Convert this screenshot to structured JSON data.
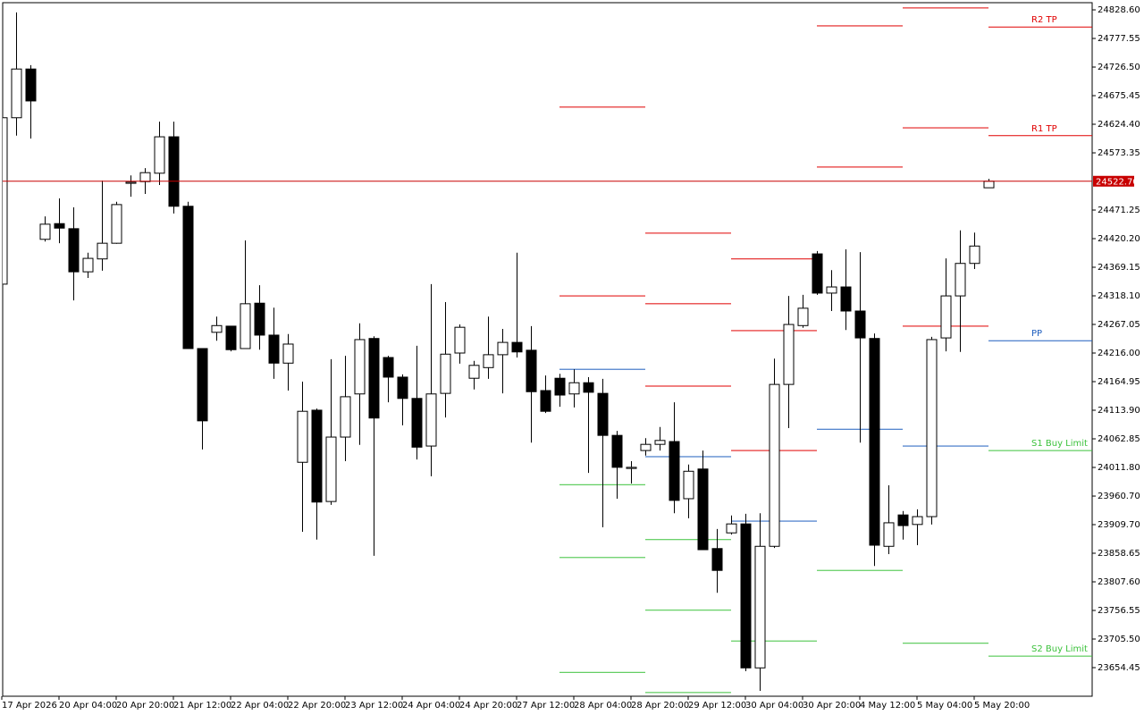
{
  "chart_data": {
    "type": "candlestick",
    "categories": [
      "17 Apr 2026",
      null,
      null,
      null,
      "20 Apr 04:00",
      null,
      null,
      null,
      "20 Apr 20:00",
      null,
      null,
      null,
      "21 Apr 12:00",
      null,
      null,
      null,
      "22 Apr 04:00",
      null,
      null,
      null,
      "22 Apr 20:00",
      null,
      null,
      null,
      "23 Apr 12:00",
      null,
      null,
      null,
      "24 Apr 04:00",
      null,
      null,
      null,
      "24 Apr 20:00",
      null,
      null,
      null,
      "27 Apr 12:00",
      null,
      null,
      null,
      "28 Apr 04:00",
      null,
      null,
      null,
      "28 Apr 20:00",
      null,
      null,
      null,
      "29 Apr 12:00",
      null,
      null,
      null,
      "30 Apr 04:00",
      null,
      null,
      null,
      "30 Apr 20:00",
      null,
      null,
      null,
      "4 May 12:00",
      null,
      null,
      null,
      "5 May 04:00",
      null,
      null,
      null,
      "5 May 20:00",
      null
    ],
    "open": [
      24339,
      24636,
      24723,
      24419,
      24447,
      24438,
      24361,
      24384,
      24412,
      24519,
      24522,
      24537,
      24602,
      24478,
      24224,
      24253,
      24264,
      24224,
      24305,
      24248,
      24198,
      24021,
      24114,
      23951,
      24066,
      24143,
      24242,
      24208,
      24173,
      24135,
      24050,
      24144,
      24216,
      24171,
      24190,
      24213,
      24235,
      24221,
      24149,
      24171,
      24143,
      24163,
      24144,
      24069,
      24010,
      24042,
      24053,
      24058,
      23956,
      24009,
      23867,
      23895,
      23911,
      23654,
      23871,
      24160,
      24265,
      24393,
      24323,
      24334,
      24291,
      24242,
      23871,
      23927,
      23910,
      23924,
      24243,
      24318,
      24376,
      24511
    ],
    "high": [
      24639,
      24824,
      24730,
      24460,
      24492,
      24476,
      24395,
      24524,
      24486,
      24533,
      24546,
      24629,
      24629,
      24486,
      24224,
      24281,
      24264,
      24417,
      24337,
      24297,
      24250,
      24165,
      24117,
      24205,
      24211,
      24269,
      24246,
      24211,
      24178,
      24229,
      24339,
      24307,
      24267,
      24202,
      24281,
      24259,
      24395,
      24264,
      24176,
      24179,
      24187,
      24173,
      24170,
      24077,
      24023,
      24064,
      24084,
      24128,
      24017,
      24042,
      23902,
      23926,
      23929,
      23930,
      24206,
      24318,
      24320,
      24398,
      24364,
      24401,
      24396,
      24251,
      23980,
      23934,
      23937,
      24245,
      24385,
      24435,
      24431,
      24527
    ],
    "low": [
      24336,
      24604,
      24599,
      24415,
      24412,
      24310,
      24350,
      24363,
      24411,
      24495,
      24500,
      24516,
      24465,
      24224,
      24044,
      24238,
      24219,
      24224,
      24222,
      24170,
      24149,
      23897,
      23883,
      23945,
      24023,
      24052,
      23854,
      24128,
      24087,
      24026,
      23996,
      24101,
      24197,
      24151,
      24170,
      24144,
      24208,
      24056,
      24109,
      24120,
      24119,
      24002,
      23905,
      23956,
      23983,
      24033,
      24042,
      23930,
      23921,
      23865,
      23788,
      23892,
      23648,
      23613,
      23868,
      24082,
      24261,
      24320,
      24291,
      24257,
      24056,
      23836,
      23857,
      23883,
      23873,
      23910,
      24219,
      24218,
      24366,
      24511
    ],
    "close": [
      24636,
      24723,
      24666,
      24446,
      24439,
      24361,
      24385,
      24412,
      24481,
      24521,
      24538,
      24602,
      24478,
      24224,
      24095,
      24265,
      24222,
      24304,
      24248,
      24198,
      24232,
      24112,
      23950,
      24066,
      24138,
      24240,
      24100,
      24173,
      24135,
      24048,
      24143,
      24214,
      24262,
      24194,
      24213,
      24235,
      24218,
      24147,
      24112,
      24141,
      24163,
      24146,
      24069,
      24012,
      24012,
      24053,
      24060,
      23953,
      24005,
      23865,
      23828,
      23911,
      23654,
      23871,
      24160,
      24267,
      24296,
      24323,
      24334,
      24291,
      24243,
      23873,
      23913,
      23908,
      23924,
      24240,
      24318,
      24376,
      24407,
      24522.7
    ],
    "up_color": "#ffffff",
    "down_color": "#000000",
    "ylim": [
      23603.4,
      24841.4
    ],
    "yticks": [
      {
        "value": 24828.6,
        "label": "24828.60"
      },
      {
        "value": 24777.55,
        "label": "24777.55"
      },
      {
        "value": 24726.5,
        "label": "24726.50"
      },
      {
        "value": 24675.45,
        "label": "24675.45"
      },
      {
        "value": 24624.4,
        "label": "24624.40"
      },
      {
        "value": 24573.35,
        "label": "24573.35"
      },
      {
        "value": 24471.25,
        "label": "24471.25"
      },
      {
        "value": 24420.2,
        "label": "24420.20"
      },
      {
        "value": 24369.15,
        "label": "24369.15"
      },
      {
        "value": 24318.1,
        "label": "24318.10"
      },
      {
        "value": 24267.05,
        "label": "24267.05"
      },
      {
        "value": 24216,
        "label": "24216.00"
      },
      {
        "value": 24164.95,
        "label": "24164.95"
      },
      {
        "value": 24113.9,
        "label": "24113.90"
      },
      {
        "value": 24062.85,
        "label": "24062.85"
      },
      {
        "value": 24011.8,
        "label": "24011.80"
      },
      {
        "value": 23960.7,
        "label": "23960.70"
      },
      {
        "value": 23909.7,
        "label": "23909.70"
      },
      {
        "value": 23858.65,
        "label": "23858.65"
      },
      {
        "value": 23807.6,
        "label": "23807.60"
      },
      {
        "value": 23756.55,
        "label": "23756.55"
      },
      {
        "value": 23705.5,
        "label": "23705.50"
      },
      {
        "value": 23654.45,
        "label": "23654.45"
      }
    ],
    "current_price": {
      "value": 24522.7,
      "label": "24522.70",
      "color": "#c80000"
    },
    "levels": [
      {
        "color": "#e00000",
        "label": "R2 TP",
        "values": [
          null,
          null,
          null,
          null,
          null,
          null,
          null,
          null,
          null,
          null,
          null,
          null,
          null,
          null,
          null,
          null,
          null,
          null,
          null,
          null,
          null,
          null,
          null,
          null,
          null,
          null,
          null,
          null,
          null,
          null,
          null,
          null,
          null,
          null,
          null,
          null,
          null,
          null,
          null,
          24655,
          24655,
          24655,
          24655,
          24655,
          24655,
          24430,
          24430,
          24430,
          24430,
          24430,
          24430,
          24384,
          24384,
          24384,
          24384,
          24384,
          24384,
          24800,
          24800,
          24800,
          24800,
          24800,
          24800,
          24832,
          24832,
          24832,
          24832,
          24832,
          24832,
          24798
        ]
      },
      {
        "color": "#e00000",
        "label": "R1 TP",
        "values": [
          null,
          null,
          null,
          null,
          null,
          null,
          null,
          null,
          null,
          null,
          null,
          null,
          null,
          null,
          null,
          null,
          null,
          null,
          null,
          null,
          null,
          null,
          null,
          null,
          null,
          null,
          null,
          null,
          null,
          null,
          null,
          null,
          null,
          null,
          null,
          null,
          null,
          null,
          null,
          24318,
          24318,
          24318,
          24318,
          24318,
          24318,
          24304,
          24304,
          24304,
          24304,
          24304,
          24304,
          24256,
          24256,
          24256,
          24256,
          24256,
          24256,
          24548,
          24548,
          24548,
          24548,
          24548,
          24548,
          24618,
          24618,
          24618,
          24618,
          24618,
          24618,
          24604
        ]
      },
      {
        "color": "#e00000",
        "values": [
          null,
          null,
          null,
          null,
          null,
          null,
          null,
          null,
          null,
          null,
          null,
          null,
          null,
          null,
          null,
          null,
          null,
          null,
          null,
          null,
          null,
          null,
          null,
          null,
          null,
          null,
          null,
          null,
          null,
          null,
          null,
          null,
          null,
          null,
          null,
          null,
          null,
          null,
          null,
          null,
          null,
          null,
          null,
          null,
          null,
          24157,
          24157,
          24157,
          24157,
          24157,
          24157,
          24042,
          24042,
          24042,
          24042,
          24042,
          24042,
          null,
          null,
          null,
          null,
          null,
          null,
          24264,
          24264,
          24264,
          24264,
          24264,
          24264,
          null
        ]
      },
      {
        "color": "#1f5fbf",
        "label": "PP",
        "values": [
          null,
          null,
          null,
          null,
          null,
          null,
          null,
          null,
          null,
          null,
          null,
          null,
          null,
          null,
          null,
          null,
          null,
          null,
          null,
          null,
          null,
          null,
          null,
          null,
          null,
          null,
          null,
          null,
          null,
          null,
          null,
          null,
          null,
          null,
          null,
          null,
          null,
          null,
          null,
          24187,
          24187,
          24187,
          24187,
          24187,
          24187,
          24031,
          24031,
          24031,
          24031,
          24031,
          24031,
          23916,
          23916,
          23916,
          23916,
          23916,
          23916,
          24080,
          24080,
          24080,
          24080,
          24080,
          24080,
          24050,
          24050,
          24050,
          24050,
          24050,
          24050,
          24238
        ]
      },
      {
        "color": "#3cc23c",
        "label": "S1 Buy Limit",
        "values": [
          null,
          null,
          null,
          null,
          null,
          null,
          null,
          null,
          null,
          null,
          null,
          null,
          null,
          null,
          null,
          null,
          null,
          null,
          null,
          null,
          null,
          null,
          null,
          null,
          null,
          null,
          null,
          null,
          null,
          null,
          null,
          null,
          null,
          null,
          null,
          null,
          null,
          null,
          null,
          23981,
          23981,
          23981,
          23981,
          23981,
          23981,
          23883,
          23883,
          23883,
          23883,
          23883,
          23883,
          23702,
          23702,
          23702,
          23702,
          23702,
          23702,
          23828,
          23828,
          23828,
          23828,
          23828,
          23828,
          23698,
          23698,
          23698,
          23698,
          23698,
          23698,
          24042
        ]
      },
      {
        "color": "#3cc23c",
        "label": "S2 Buy Limit",
        "values": [
          null,
          null,
          null,
          null,
          null,
          null,
          null,
          null,
          null,
          null,
          null,
          null,
          null,
          null,
          null,
          null,
          null,
          null,
          null,
          null,
          null,
          null,
          null,
          null,
          null,
          null,
          null,
          null,
          null,
          null,
          null,
          null,
          null,
          null,
          null,
          null,
          null,
          null,
          null,
          23851,
          23851,
          23851,
          23851,
          23851,
          23851,
          23757,
          23757,
          23757,
          23757,
          23757,
          23757,
          null,
          null,
          null,
          null,
          null,
          null,
          null,
          null,
          null,
          null,
          null,
          null,
          null,
          null,
          null,
          null,
          null,
          null,
          23675
        ]
      },
      {
        "color": "#3cc23c",
        "values": [
          null,
          null,
          null,
          null,
          null,
          null,
          null,
          null,
          null,
          null,
          null,
          null,
          null,
          null,
          null,
          null,
          null,
          null,
          null,
          null,
          null,
          null,
          null,
          null,
          null,
          null,
          null,
          null,
          null,
          null,
          null,
          null,
          null,
          null,
          null,
          null,
          null,
          null,
          null,
          23646,
          23646,
          23646,
          23646,
          23646,
          23646,
          23610,
          23610,
          23610,
          23610,
          23610,
          23610,
          null,
          null,
          null,
          null,
          null,
          null,
          null,
          null,
          null,
          null,
          null,
          null,
          null,
          null,
          null,
          null,
          null,
          null,
          null
        ]
      }
    ]
  }
}
